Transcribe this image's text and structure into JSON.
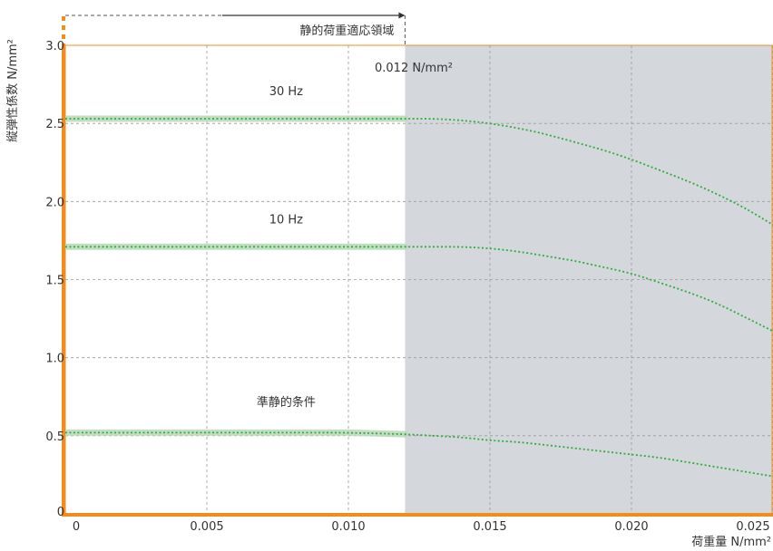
{
  "chart_data": {
    "type": "line",
    "title": "",
    "xlabel": "荷重量 N/mm²",
    "ylabel": "縦弾性係数 N/mm²",
    "xlim": [
      0,
      0.025
    ],
    "ylim": [
      0,
      3.0
    ],
    "x_ticks": [
      0,
      0.005,
      0.01,
      0.015,
      0.02,
      0.025
    ],
    "x_tick_labels": [
      "0",
      "0.005",
      "0.010",
      "0.015",
      "0.020",
      "0.025"
    ],
    "y_ticks": [
      0,
      0.5,
      1.0,
      1.5,
      2.0,
      2.5,
      3.0
    ],
    "y_tick_labels": [
      "0",
      "0.5",
      "1.0",
      "1.5",
      "2.0",
      "2.5",
      "3.0"
    ],
    "grid": true,
    "colors": {
      "series": "#2eae3a",
      "band": "#bcd9bc",
      "axis": "#f28c1c",
      "shade": "#d4d7dc",
      "grid": "#9a9a9a"
    },
    "shaded_region": {
      "x_from": 0.012,
      "x_to": 0.025,
      "label": "0.012 N/mm²"
    },
    "static_range": {
      "x_from": 0,
      "x_to": 0.012,
      "label": "静的荷重適応領域"
    },
    "series": [
      {
        "name": "30 Hz",
        "label_x": 0.0078,
        "label_y": 2.68,
        "x": [
          0,
          0.002,
          0.004,
          0.006,
          0.008,
          0.01,
          0.012,
          0.013,
          0.014,
          0.015,
          0.016,
          0.017,
          0.018,
          0.019,
          0.02,
          0.021,
          0.022,
          0.023,
          0.024,
          0.025
        ],
        "y": [
          2.53,
          2.53,
          2.53,
          2.53,
          2.53,
          2.53,
          2.53,
          2.53,
          2.52,
          2.5,
          2.47,
          2.43,
          2.38,
          2.33,
          2.27,
          2.2,
          2.13,
          2.05,
          1.96,
          1.85
        ]
      },
      {
        "name": "10 Hz",
        "label_x": 0.0078,
        "label_y": 1.86,
        "x": [
          0,
          0.002,
          0.004,
          0.006,
          0.008,
          0.01,
          0.012,
          0.013,
          0.014,
          0.015,
          0.016,
          0.017,
          0.018,
          0.019,
          0.02,
          0.021,
          0.022,
          0.023,
          0.024,
          0.025
        ],
        "y": [
          1.71,
          1.71,
          1.71,
          1.71,
          1.71,
          1.71,
          1.71,
          1.71,
          1.71,
          1.7,
          1.68,
          1.65,
          1.62,
          1.58,
          1.54,
          1.48,
          1.42,
          1.35,
          1.26,
          1.17
        ]
      },
      {
        "name": "準静的条件",
        "label_x": 0.0078,
        "label_y": 0.69,
        "x": [
          0,
          0.002,
          0.004,
          0.006,
          0.008,
          0.01,
          0.012,
          0.013,
          0.014,
          0.015,
          0.016,
          0.017,
          0.018,
          0.019,
          0.02,
          0.021,
          0.022,
          0.023,
          0.024,
          0.025
        ],
        "y": [
          0.52,
          0.52,
          0.52,
          0.52,
          0.52,
          0.52,
          0.51,
          0.5,
          0.49,
          0.47,
          0.46,
          0.44,
          0.42,
          0.4,
          0.38,
          0.36,
          0.33,
          0.3,
          0.27,
          0.24
        ]
      }
    ]
  }
}
